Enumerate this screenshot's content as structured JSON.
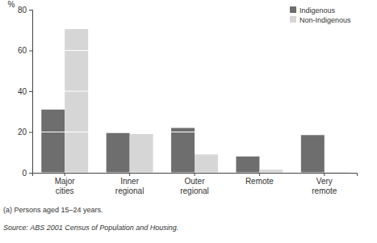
{
  "chart_data": {
    "type": "bar",
    "y_label": "%",
    "categories": [
      "Major cities",
      "Inner regional",
      "Outer regional",
      "Remote",
      "Very remote"
    ],
    "series": [
      {
        "name": "Indigenous",
        "color": "#6e6e6e",
        "values": [
          31,
          19.5,
          22,
          8,
          18.5
        ]
      },
      {
        "name": "Non-Indigenous",
        "color": "#d6d6d6",
        "values": [
          70.5,
          19,
          9,
          1.5,
          0.3
        ]
      }
    ],
    "ylim": [
      0,
      80
    ],
    "yticks": [
      0,
      20,
      40,
      60,
      80
    ],
    "grid": true,
    "legend": "upper right",
    "annotations": [
      "(a) Persons aged 15–24 years.",
      "Source: ABS 2001 Census of Population and Housing."
    ]
  }
}
